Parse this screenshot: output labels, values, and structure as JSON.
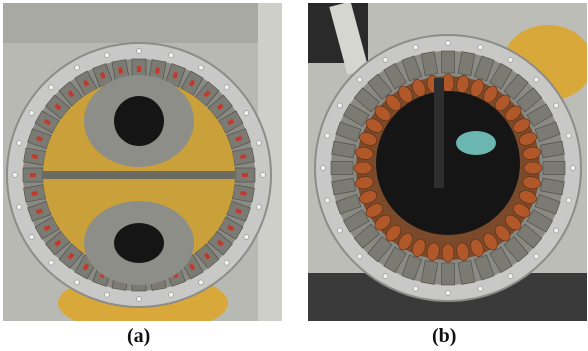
{
  "figure": {
    "panels": [
      {
        "id": "a",
        "caption": "(a)",
        "subject": "rotor-magnet-ring-photo"
      },
      {
        "id": "b",
        "caption": "(b)",
        "subject": "stator-winding-ring-photo"
      }
    ],
    "colors": {
      "aluminum_ring": "#c8c8c6",
      "ring_edge": "#8c8c8a",
      "steel_segment": "#7b7b74",
      "copper_coil": "#b0582a",
      "yellow_fixture": "#d8a93a",
      "dark_hub": "#151515",
      "workbench": "#b9b9b3",
      "marker_red": "#c23a2e"
    }
  }
}
